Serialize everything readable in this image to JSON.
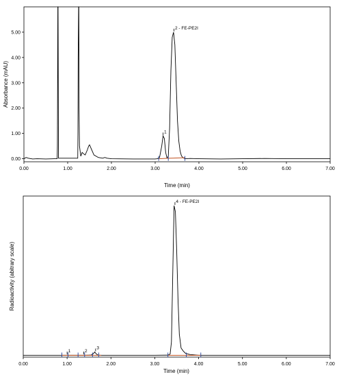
{
  "chart_data": [
    {
      "type": "line",
      "xlabel": "Time (min)",
      "ylabel": "Absorbance (mAU)",
      "xlim": [
        0,
        7
      ],
      "ylim": [
        -0.12,
        6.0
      ],
      "x_ticks": [
        "0.00",
        "1.00",
        "2.00",
        "3.00",
        "4.00",
        "5.00",
        "6.00",
        "7.00"
      ],
      "y_ticks": [
        "0.00",
        "1.00",
        "2.00",
        "3.00",
        "4.00",
        "5.00"
      ],
      "series": [
        {
          "x": [
            0.0,
            0.05,
            0.1,
            0.2,
            0.3,
            0.5,
            0.7,
            0.76,
            0.765,
            0.77,
            0.775,
            0.78,
            0.79,
            1.23,
            1.235,
            1.24,
            1.25,
            1.255,
            1.26,
            1.27,
            1.3,
            1.33,
            1.36,
            1.4,
            1.45,
            1.48,
            1.5,
            1.55,
            1.6,
            1.7,
            1.8,
            1.85,
            1.9,
            2.0,
            2.5,
            3.0,
            3.05,
            3.1,
            3.15,
            3.18,
            3.21,
            3.24,
            3.27,
            3.3,
            3.33,
            3.36,
            3.39,
            3.42,
            3.45,
            3.48,
            3.51,
            3.54,
            3.57,
            3.6,
            3.63,
            3.66,
            3.7,
            3.8,
            4.0,
            4.5,
            5.0,
            5.5,
            6.0,
            6.5,
            7.0
          ],
          "y": [
            0.0,
            0.05,
            0.02,
            -0.01,
            0.0,
            -0.01,
            0.0,
            0.0,
            0.5,
            3.0,
            6.0,
            6.0,
            0.02,
            0.02,
            1.0,
            4.0,
            6.0,
            6.0,
            2.0,
            0.5,
            0.1,
            0.25,
            0.2,
            0.15,
            0.35,
            0.5,
            0.55,
            0.35,
            0.15,
            0.05,
            0.02,
            0.05,
            0.02,
            0.0,
            -0.01,
            -0.01,
            0.0,
            0.05,
            0.5,
            0.9,
            0.8,
            0.25,
            0.03,
            0.1,
            1.2,
            3.5,
            4.8,
            5.0,
            4.5,
            3.0,
            1.5,
            0.7,
            0.3,
            0.12,
            0.05,
            0.02,
            0.0,
            0.01,
            0.0,
            -0.01,
            0.0,
            0.01,
            0.0,
            0.0,
            0.0
          ]
        }
      ],
      "peaks": [
        {
          "label": "1",
          "x": 3.18,
          "y": 0.9
        },
        {
          "label": "2 - FE-PE2I",
          "x": 3.43,
          "y": 5.0
        }
      ],
      "integration_baselines": [
        {
          "x": [
            3.08,
            3.3
          ],
          "y": [
            0.0,
            0.02
          ]
        },
        {
          "x": [
            3.3,
            3.68
          ],
          "y": [
            0.02,
            0.04
          ]
        }
      ],
      "integration_markers": [
        3.08,
        3.3,
        3.68
      ]
    },
    {
      "type": "line",
      "xlabel": "Time (min)",
      "ylabel": "Radioactivity (abitrary scale)",
      "xlim": [
        0,
        7
      ],
      "ylim": [
        0,
        100
      ],
      "x_ticks": [
        "0.00",
        "1.00",
        "2.00",
        "3.00",
        "4.00",
        "5.00",
        "6.00",
        "7.00"
      ],
      "series": [
        {
          "x": [
            0.0,
            0.5,
            1.0,
            1.4,
            1.5,
            1.55,
            1.6,
            1.63,
            1.66,
            1.7,
            1.75,
            2.0,
            2.5,
            3.0,
            3.3,
            3.35,
            3.38,
            3.41,
            3.44,
            3.47,
            3.5,
            3.53,
            3.56,
            3.6,
            3.65,
            3.7,
            3.8,
            4.0,
            4.5,
            5.0,
            6.0,
            7.0
          ],
          "y": [
            1.2,
            1.2,
            1.2,
            1.2,
            1.3,
            1.4,
            2.3,
            3.4,
            2.3,
            1.4,
            1.2,
            1.2,
            1.2,
            1.2,
            1.3,
            2.0,
            10.0,
            55.0,
            100.0,
            96.0,
            70.0,
            38.0,
            15.0,
            6.0,
            4.0,
            2.5,
            1.7,
            1.2,
            1.2,
            1.2,
            1.2,
            1.2
          ]
        }
      ],
      "peaks": [
        {
          "label": "1",
          "x": 1.0,
          "y": 1.4
        },
        {
          "label": "2",
          "x": 1.38,
          "y": 1.4
        },
        {
          "label": "3",
          "x": 1.65,
          "y": 3.4
        },
        {
          "label": "4 - FE-PE2I",
          "x": 3.46,
          "y": 100.0
        }
      ],
      "integration_baselines": [
        {
          "x": [
            0.88,
            1.78
          ],
          "y": [
            1.2,
            1.2
          ]
        },
        {
          "x": [
            3.3,
            4.05
          ],
          "y": [
            1.2,
            1.2
          ]
        }
      ],
      "integration_markers": [
        0.88,
        1.02,
        1.25,
        1.4,
        1.58,
        1.72,
        3.3,
        3.72,
        4.05
      ]
    }
  ]
}
